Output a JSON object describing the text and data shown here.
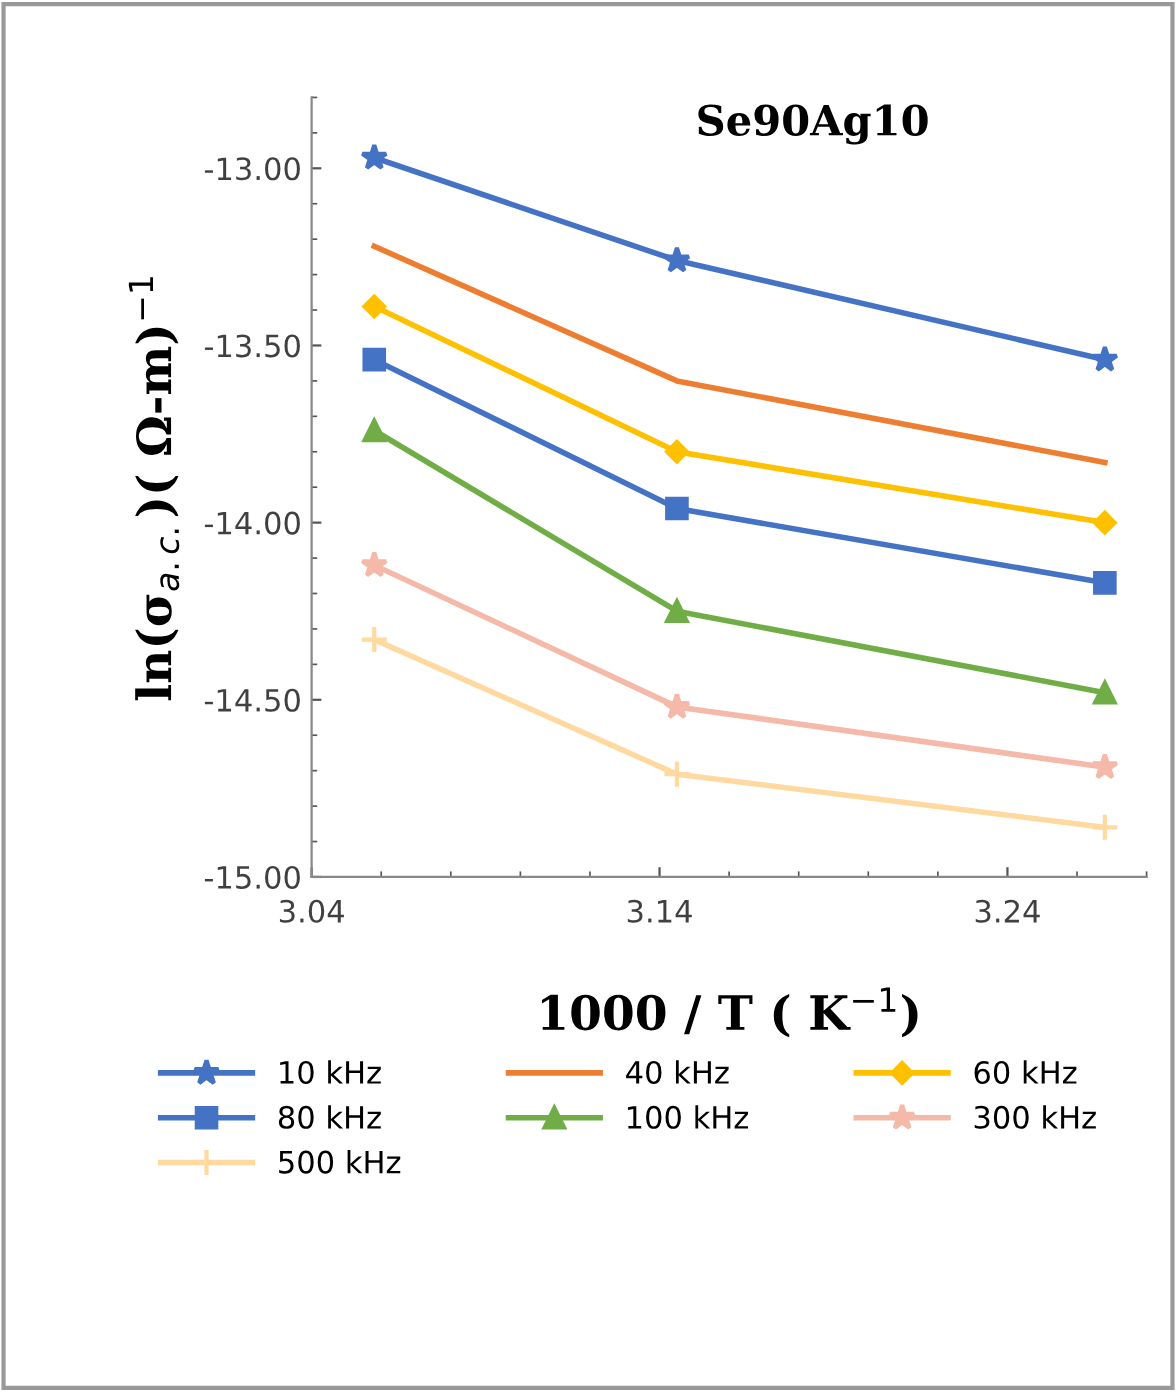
{
  "chart_data": {
    "type": "line",
    "title": "Se90Ag10",
    "xlabel": "1000 / T ( K$^{−1}$)",
    "ylabel": "ln(σ$_{a.c.}$)( Ω-m)$^{−1}$",
    "x": [
      3.058,
      3.145,
      3.268
    ],
    "series": [
      {
        "name": "10 kHz",
        "color": "#4472c4",
        "marker": "star",
        "values": [
          -12.97,
          -13.26,
          -13.54
        ]
      },
      {
        "name": "40 kHz",
        "color": "#ed7d31",
        "marker": "none",
        "values": [
          -13.22,
          -13.6,
          -13.83
        ]
      },
      {
        "name": "60 kHz",
        "color": "#ffc000",
        "marker": "diamond",
        "values": [
          -13.39,
          -13.8,
          -14.0
        ]
      },
      {
        "name": "80 kHz",
        "color": "#4472c4",
        "marker": "square",
        "values": [
          -13.54,
          -13.96,
          -14.17
        ]
      },
      {
        "name": "100 kHz",
        "color": "#70ad47",
        "marker": "triangle",
        "values": [
          -13.74,
          -14.25,
          -14.48
        ]
      },
      {
        "name": "300 kHz",
        "color": "#f4b9a8",
        "marker": "star",
        "values": [
          -14.12,
          -14.52,
          -14.69
        ]
      },
      {
        "name": "500 kHz",
        "color": "#ffd9a0",
        "marker": "cross",
        "values": [
          -14.33,
          -14.71,
          -14.86
        ]
      }
    ],
    "xlim": [
      3.04,
      3.28
    ],
    "xticks": [
      3.04,
      3.14,
      3.24
    ],
    "ylim": [
      -15.0,
      -12.8
    ],
    "yticks": [
      {
        "value": -15.0,
        "label": "-15.00"
      },
      {
        "value": -14.5,
        "label": "-14.50"
      },
      {
        "value": -14.0,
        "label": "-14.00"
      },
      {
        "value": -13.5,
        "label": "-13.50"
      },
      {
        "value": -13.0,
        "label": "-13.00"
      }
    ],
    "grid": false,
    "legend": "bottom",
    "line_style": "solid"
  }
}
